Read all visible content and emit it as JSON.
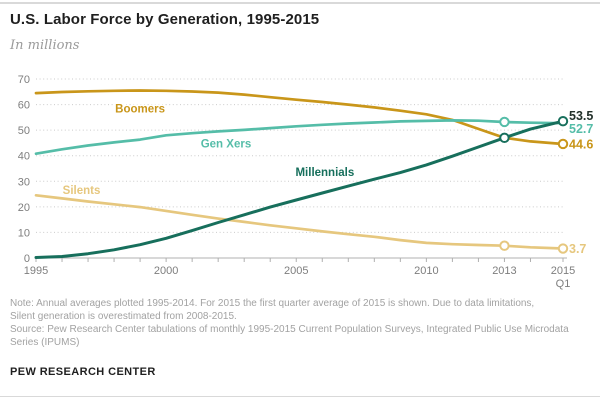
{
  "header": {
    "title": "U.S. Labor Force by Generation, 1995-2015",
    "subtitle": "In millions"
  },
  "chart_data": {
    "type": "line",
    "title": "U.S. Labor Force by Generation, 1995-2015",
    "ylabel": "In millions",
    "xlabel": "",
    "ylim": [
      0,
      70
    ],
    "ytick_step": 10,
    "xlim": [
      1995,
      2015.25
    ],
    "grid": "horizontal-dotted",
    "legend_position": "inline-labels",
    "x": [
      1995,
      1996,
      1997,
      1998,
      1999,
      2000,
      2001,
      2002,
      2003,
      2004,
      2005,
      2006,
      2007,
      2008,
      2009,
      2010,
      2011,
      2012,
      2013,
      2014,
      2015.25
    ],
    "x_display": [
      "1995",
      "1996",
      "1997",
      "1998",
      "1999",
      "2000",
      "2001",
      "2002",
      "2003",
      "2004",
      "2005",
      "2006",
      "2007",
      "2008",
      "2009",
      "2010",
      "2011",
      "2012",
      "2013",
      "2014",
      "2015 Q1"
    ],
    "x_axis_labels": [
      {
        "x": 1995,
        "label": "1995",
        "sub": ""
      },
      {
        "x": 2000,
        "label": "2000",
        "sub": ""
      },
      {
        "x": 2005,
        "label": "2005",
        "sub": ""
      },
      {
        "x": 2010,
        "label": "2010",
        "sub": ""
      },
      {
        "x": 2013,
        "label": "2013",
        "sub": ""
      },
      {
        "x": 2015.25,
        "label": "2015",
        "sub": "Q1"
      }
    ],
    "series": [
      {
        "name": "Silents",
        "color": "#E6C77E",
        "label_pos": {
          "x": 1996.75,
          "y": 26.5
        },
        "values": [
          24.5,
          23.3,
          22.1,
          21.0,
          19.9,
          18.4,
          16.9,
          15.4,
          14.1,
          12.8,
          11.6,
          10.4,
          9.3,
          8.3,
          7.0,
          5.9,
          5.4,
          5.1,
          4.8,
          4.2,
          3.7
        ]
      },
      {
        "name": "Boomers",
        "color": "#C9961A",
        "label_pos": {
          "x": 1999.0,
          "y": 58.5
        },
        "values": [
          64.5,
          64.9,
          65.2,
          65.4,
          65.5,
          65.4,
          65.1,
          64.7,
          63.9,
          62.9,
          61.9,
          61.0,
          60.0,
          58.9,
          57.6,
          56.2,
          54.0,
          50.5,
          47.0,
          45.6,
          44.6
        ]
      },
      {
        "name": "Gen Xers",
        "color": "#55BDA8",
        "label_pos": {
          "x": 2002.3,
          "y": 44.7
        },
        "values": [
          40.8,
          42.5,
          44.0,
          45.2,
          46.3,
          48.0,
          48.8,
          49.5,
          50.1,
          50.8,
          51.5,
          52.1,
          52.6,
          53.0,
          53.4,
          53.6,
          53.8,
          53.7,
          53.2,
          52.9,
          52.7
        ]
      },
      {
        "name": "Millennials",
        "color": "#176F5C",
        "label_pos": {
          "x": 2006.1,
          "y": 33.6
        },
        "values": [
          0.2,
          0.6,
          1.7,
          3.2,
          5.2,
          7.7,
          10.7,
          13.9,
          16.9,
          19.9,
          22.7,
          25.4,
          28.1,
          30.8,
          33.4,
          36.4,
          39.8,
          43.4,
          47.0,
          50.4,
          53.5
        ]
      }
    ],
    "markers": [
      {
        "series": "Gen Xers",
        "x": 2013,
        "value": 53.2,
        "color": "#55BDA8"
      },
      {
        "series": "Millennials",
        "x": 2013,
        "value": 47.0,
        "color": "#176F5C"
      },
      {
        "series": "Silents",
        "x": 2013,
        "value": 4.8,
        "color": "#E6C77E"
      },
      {
        "series": "Boomers",
        "x": 2015.25,
        "value": 44.6,
        "color": "#C9961A"
      },
      {
        "series": "Silents",
        "x": 2015.25,
        "value": 3.7,
        "color": "#E6C77E"
      },
      {
        "series": "Millennials",
        "x": 2015.25,
        "value": 53.5,
        "color": "#176F5C"
      }
    ],
    "end_labels": [
      {
        "text": "53.5",
        "value": 53.5,
        "color": "#22302a"
      },
      {
        "text": "52.7",
        "value": 52.7,
        "color": "#55BDA8"
      },
      {
        "text": "44.6",
        "value": 44.6,
        "color": "#C9961A"
      },
      {
        "text": "3.7",
        "value": 3.7,
        "color": "#E6C77E"
      }
    ],
    "colors": {
      "grid": "#cbcbcb",
      "axis": "#b0b0b0",
      "axis_text": "#7e7e7e",
      "marker_fill": "#ffffff"
    }
  },
  "notes": {
    "note": "Note: Annual averages plotted 1995-2014. For 2015 the first quarter average of 2015 is shown. Due to data limitations,\nSilent generation is overestimated from 2008-2015.",
    "source": "Source: Pew Research Center tabulations of monthly 1995-2015 Current Population Surveys, Integrated Public Use Microdata\nSeries (IPUMS)"
  },
  "branding": "PEW RESEARCH CENTER"
}
